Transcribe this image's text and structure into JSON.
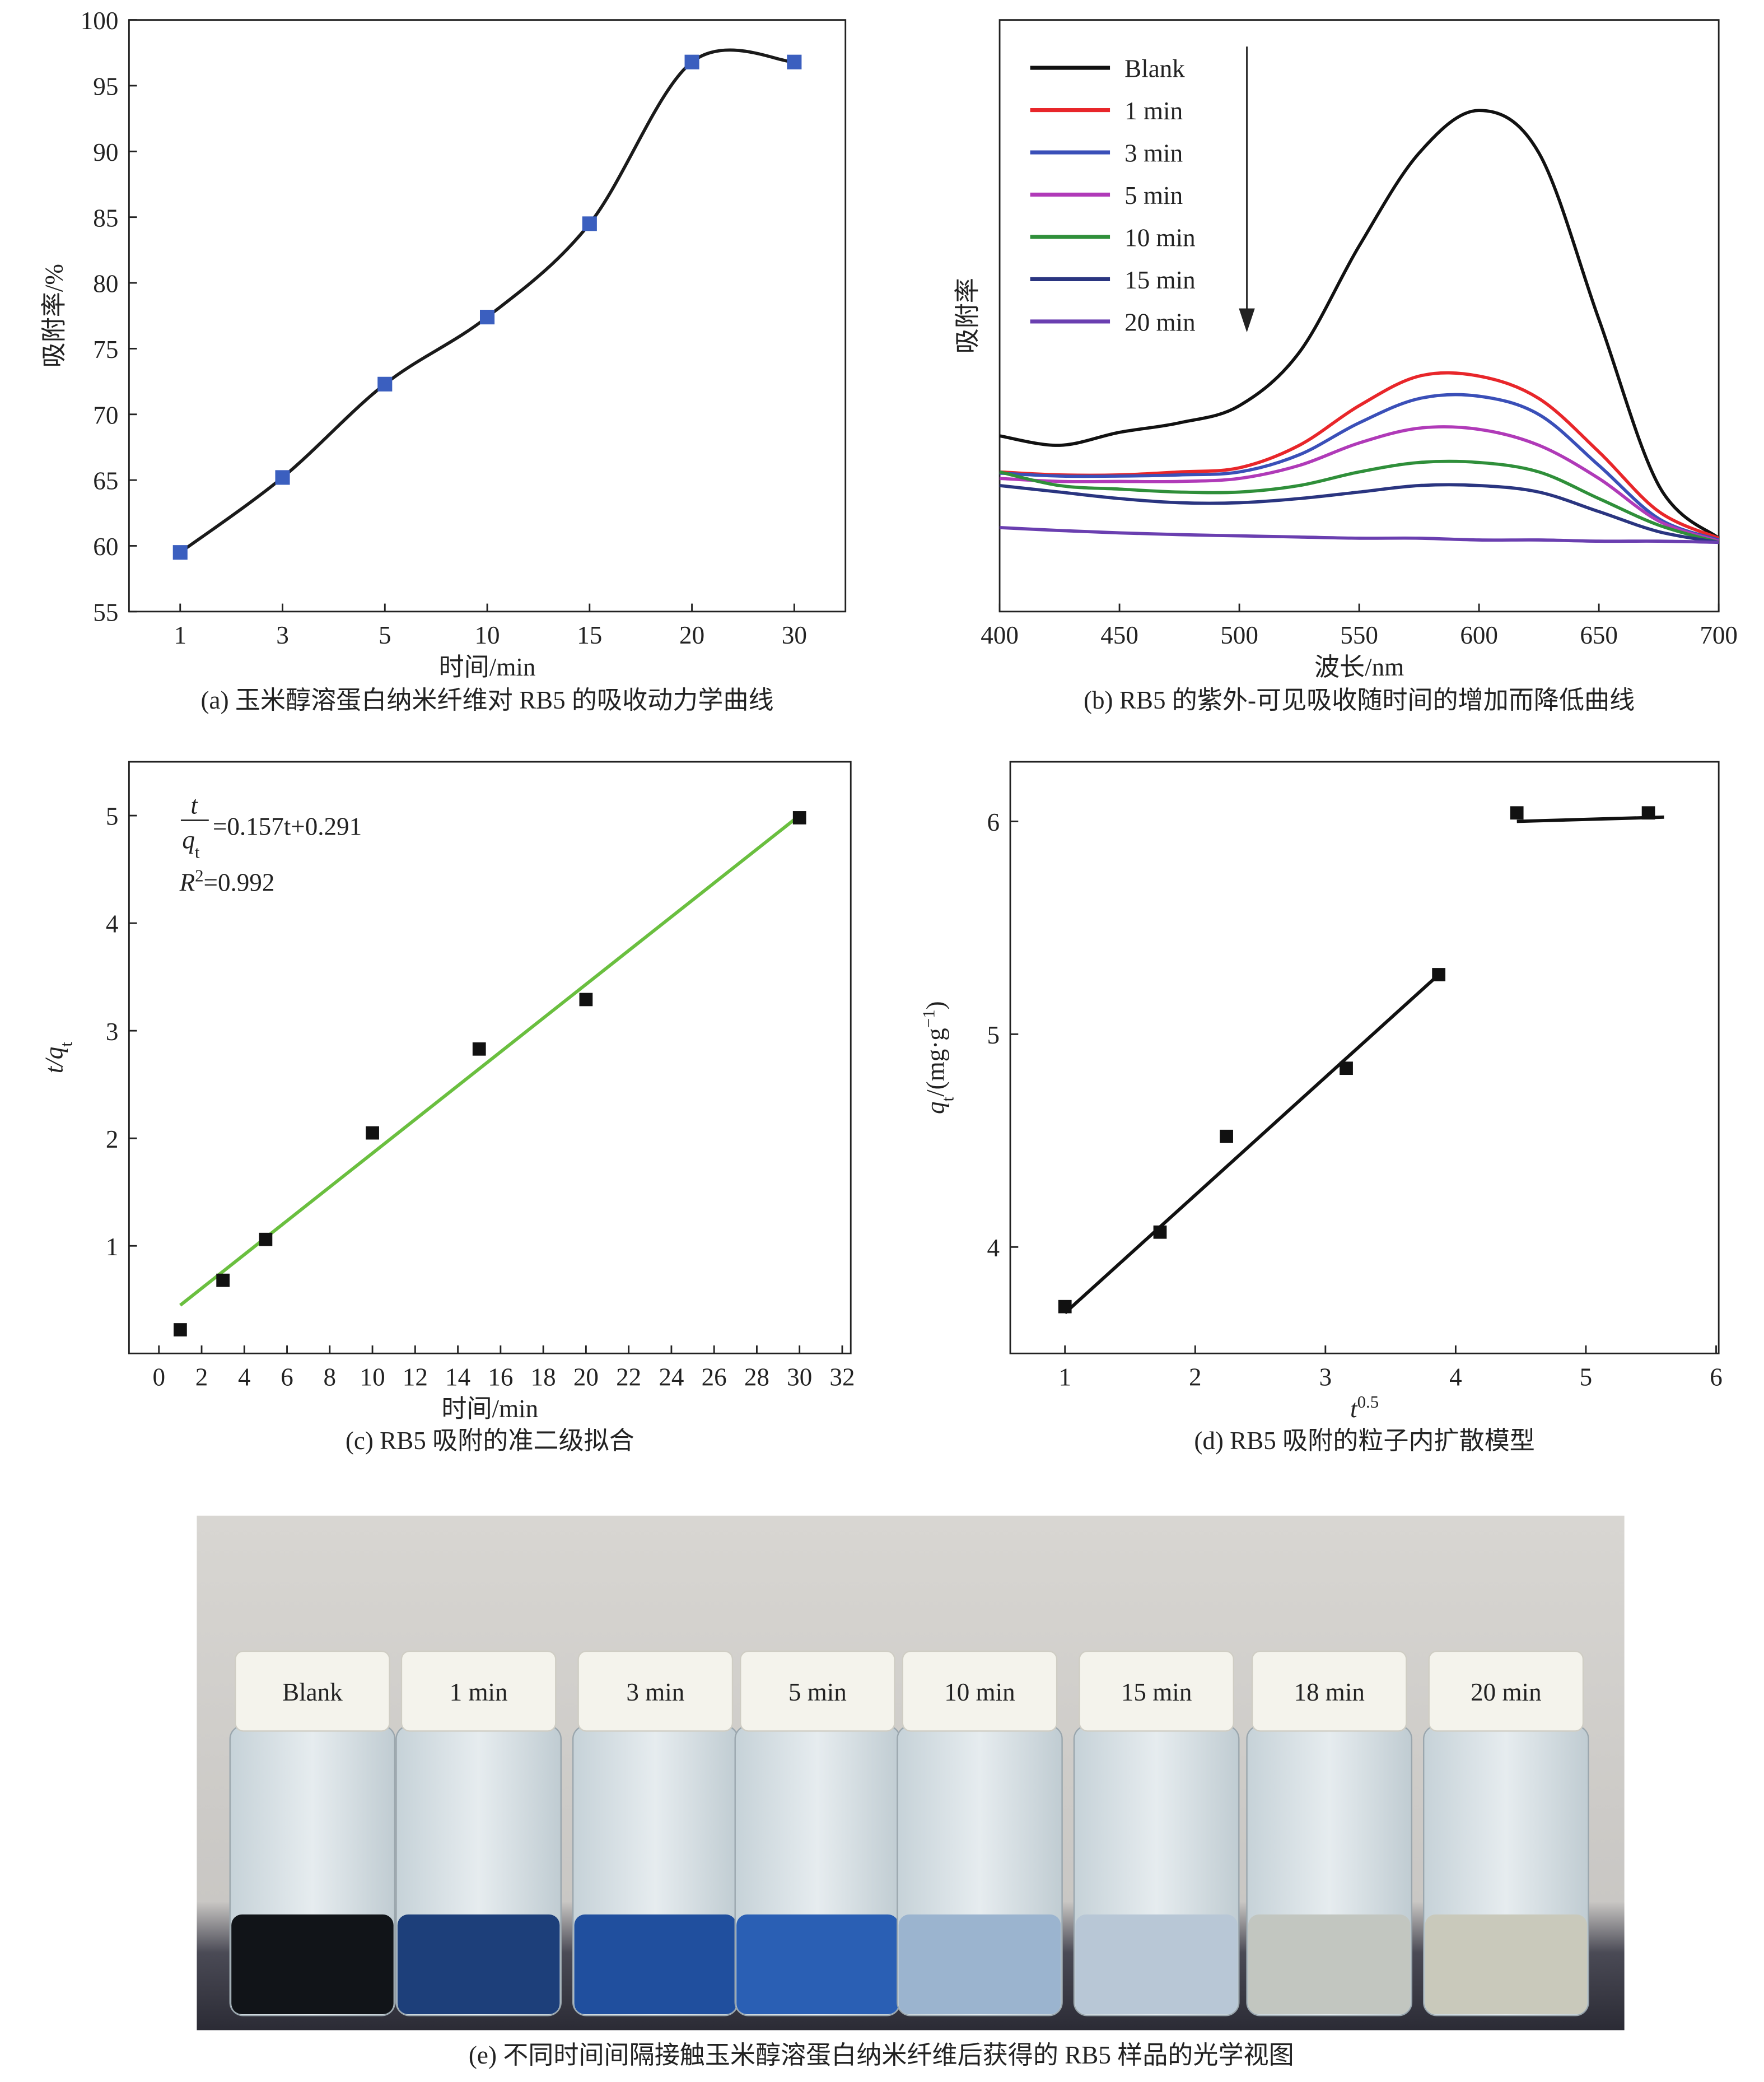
{
  "chart_data": [
    {
      "type": "line",
      "smooth": true,
      "categories": [
        "1",
        "3",
        "5",
        "10",
        "15",
        "20",
        "30"
      ],
      "values": [
        59.5,
        65.2,
        72.3,
        77.4,
        84.5,
        96.8,
        96.8
      ],
      "color": "#1a1a1a",
      "marker_color": "#3b5fbf",
      "ylim": [
        55,
        100
      ],
      "yticks": [
        55,
        60,
        65,
        70,
        75,
        80,
        85,
        90,
        95,
        100
      ],
      "xlabel": "时间/min",
      "ylabel": "吸附率/%",
      "caption": "(a) 玉米醇溶蛋白纳米纤维对 RB5 的吸收动力学曲线"
    },
    {
      "type": "line",
      "smooth": true,
      "x": [
        400,
        425,
        450,
        475,
        500,
        525,
        550,
        575,
        600,
        625,
        650,
        675,
        700
      ],
      "xlim": [
        400,
        700
      ],
      "xticks": [
        400,
        450,
        500,
        550,
        600,
        650,
        700
      ],
      "ylim": [
        0,
        1
      ],
      "series": [
        {
          "name": "Blank",
          "color": "#111111",
          "values": [
            0.297,
            0.281,
            0.303,
            0.319,
            0.348,
            0.438,
            0.618,
            0.775,
            0.847,
            0.775,
            0.494,
            0.213,
            0.124
          ]
        },
        {
          "name": "1 min",
          "color": "#e8262a",
          "values": [
            0.236,
            0.231,
            0.231,
            0.236,
            0.243,
            0.281,
            0.348,
            0.398,
            0.398,
            0.36,
            0.27,
            0.169,
            0.124
          ]
        },
        {
          "name": "3 min",
          "color": "#3a4fb8",
          "values": [
            0.234,
            0.229,
            0.229,
            0.231,
            0.236,
            0.265,
            0.319,
            0.36,
            0.364,
            0.333,
            0.247,
            0.157,
            0.121
          ]
        },
        {
          "name": "5 min",
          "color": "#b03ab8",
          "values": [
            0.225,
            0.22,
            0.22,
            0.22,
            0.225,
            0.247,
            0.285,
            0.31,
            0.308,
            0.281,
            0.225,
            0.153,
            0.119
          ]
        },
        {
          "name": "10 min",
          "color": "#2f8f3a",
          "values": [
            0.236,
            0.213,
            0.207,
            0.202,
            0.202,
            0.213,
            0.236,
            0.252,
            0.252,
            0.236,
            0.191,
            0.146,
            0.117
          ]
        },
        {
          "name": "15 min",
          "color": "#2a3580",
          "values": [
            0.213,
            0.202,
            0.191,
            0.184,
            0.184,
            0.191,
            0.202,
            0.213,
            0.213,
            0.202,
            0.169,
            0.135,
            0.117
          ]
        },
        {
          "name": "20 min",
          "color": "#6a3fb0",
          "values": [
            0.142,
            0.137,
            0.133,
            0.13,
            0.128,
            0.126,
            0.124,
            0.124,
            0.121,
            0.121,
            0.119,
            0.119,
            0.117
          ]
        }
      ],
      "xlabel": "波长/nm",
      "ylabel": "吸附率",
      "caption": "(b) RB5 的紫外-可见吸收随时间的增加而降低曲线"
    },
    {
      "type": "scatter",
      "x": [
        1,
        3,
        5,
        10,
        15,
        20,
        30
      ],
      "values": [
        0.22,
        0.68,
        1.06,
        2.05,
        2.83,
        3.29,
        4.98
      ],
      "color": "#111111",
      "fits": [
        {
          "x": [
            1,
            30
          ],
          "values": [
            0.448,
            5.001
          ],
          "color": "#6abf3f"
        }
      ],
      "xlim": [
        -1.4,
        32.4
      ],
      "xticks": [
        0,
        2,
        4,
        6,
        8,
        10,
        12,
        14,
        16,
        18,
        20,
        22,
        24,
        26,
        28,
        30,
        32
      ],
      "ylim": [
        0,
        5.5
      ],
      "yticks": [
        1,
        2,
        3,
        4,
        5
      ],
      "xlabel": "时间/min",
      "ylabel_parts": [
        "t",
        "/q",
        "t"
      ],
      "annotation": {
        "num": "t",
        "den": "q",
        "den_sub": "t",
        "rhs": "=0.157t+0.291",
        "r": "R",
        "r_sup": "2",
        "r_rhs": "=0.992"
      },
      "caption": "(c) RB5 吸附的准二级拟合"
    },
    {
      "type": "scatter",
      "x": [
        1,
        1.73,
        2.24,
        3.16,
        3.87,
        4.47,
        5.48
      ],
      "values": [
        3.72,
        4.07,
        4.52,
        4.84,
        5.28,
        6.04,
        6.04
      ],
      "color": "#111111",
      "fits": [
        {
          "x": [
            1,
            3.87
          ],
          "values": [
            3.69,
            5.28
          ],
          "color": "#111111"
        },
        {
          "x": [
            4.47,
            5.6
          ],
          "values": [
            6.0,
            6.02
          ],
          "color": "#111111"
        }
      ],
      "xlim": [
        0.58,
        6.02
      ],
      "xticks": [
        1,
        2,
        3,
        4,
        5,
        6
      ],
      "ylim": [
        3.5,
        6.28
      ],
      "yticks": [
        4,
        5,
        6
      ],
      "xlabel_parts": [
        "t",
        "0.5"
      ],
      "ylabel_parts": [
        "q",
        "t",
        "/(mg·g",
        "−1",
        ")"
      ],
      "caption": "(d) RB5 吸附的粒子内扩散模型"
    }
  ],
  "photo": {
    "labels": [
      "Blank",
      "1 min",
      "3 min",
      "5 min",
      "10 min",
      "15 min",
      "18 min",
      "20 min"
    ],
    "caption": "(e) 不同时间间隔接触玉米醇溶蛋白纳米纤维后获得的 RB5 样品的光学视图"
  }
}
